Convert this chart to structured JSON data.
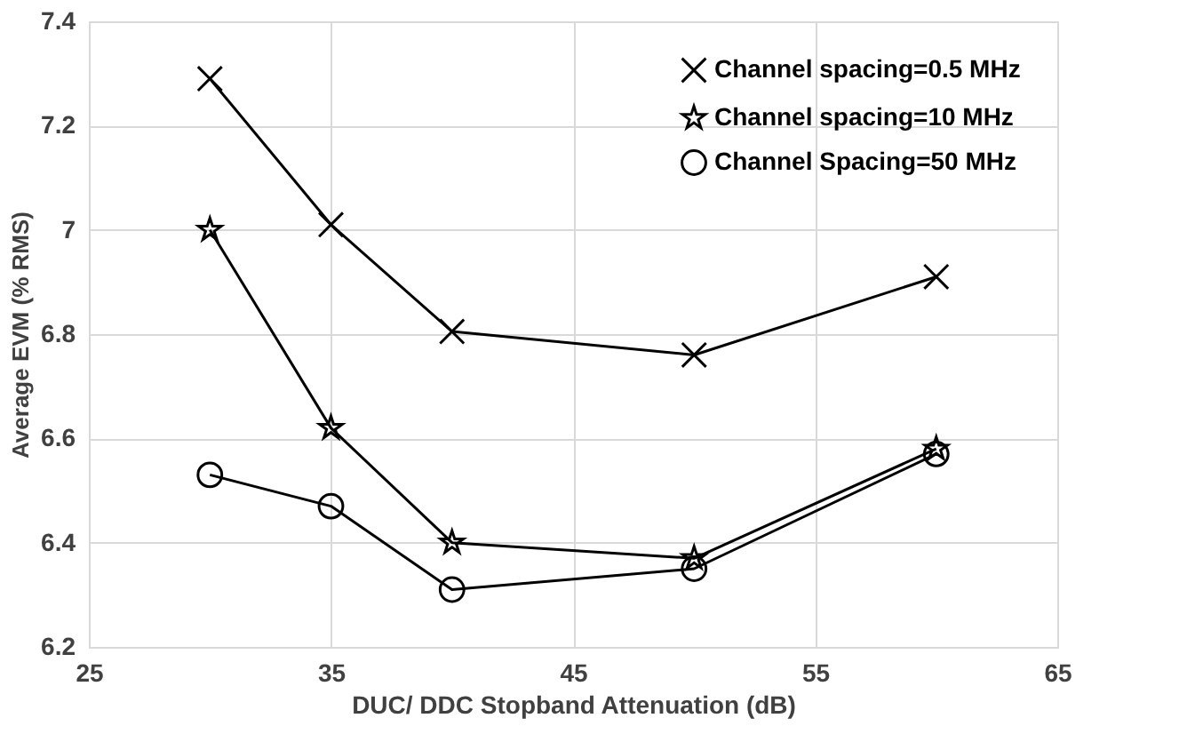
{
  "chart_data": {
    "type": "line",
    "xlabel": "DUC/ DDC Stopband Attenuation (dB)",
    "ylabel": "Average EVM (% RMS)",
    "x": [
      30,
      35,
      40,
      50,
      60
    ],
    "series": [
      {
        "name": "Channel spacing=0.5 MHz",
        "color": "#000000",
        "marker": "cross",
        "values": [
          7.29,
          7.01,
          6.805,
          6.76,
          6.91
        ]
      },
      {
        "name": "Channel spacing=10 MHz",
        "color": "#000000",
        "marker": "star",
        "values": [
          7.0,
          6.62,
          6.4,
          6.37,
          6.58
        ]
      },
      {
        "name": "Channel Spacing=50 MHz",
        "color": "#000000",
        "marker": "circle",
        "values": [
          6.53,
          6.47,
          6.31,
          6.35,
          6.57
        ]
      }
    ],
    "xlim": [
      25,
      65
    ],
    "xticks": [
      25,
      35,
      45,
      55,
      65
    ],
    "ylim": [
      6.2,
      7.4
    ],
    "yticks": [
      6.2,
      6.4,
      6.6,
      6.8,
      {
        "value": 7,
        "label": "7"
      },
      7.2,
      7.4
    ],
    "grid": true,
    "legend": "top right",
    "line_style": "solid"
  }
}
